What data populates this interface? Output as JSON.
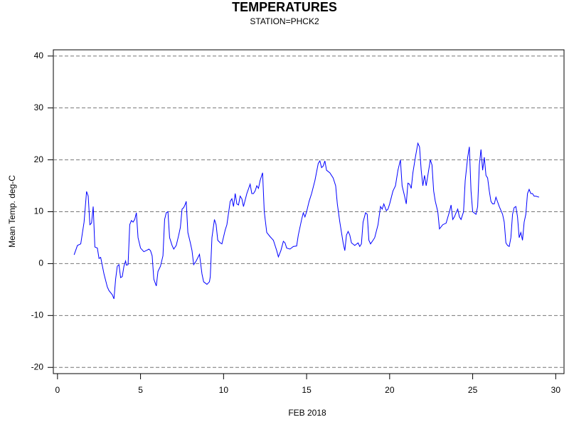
{
  "chart_data": {
    "type": "line",
    "title": "TEMPERATURES",
    "subtitle": "STATION=PHCK2",
    "xlabel": "FEB 2018",
    "ylabel": "Mean Temp. deg-C",
    "color": "#0000ff",
    "grid": true,
    "xlim": [
      -0.25,
      30.5
    ],
    "ylim": [
      -21.2,
      41.2
    ],
    "xticks": [
      0,
      5,
      10,
      15,
      20,
      25,
      30
    ],
    "yticks": [
      -20,
      -10,
      0,
      10,
      20,
      30,
      40
    ],
    "x": [
      1.0,
      1.2,
      1.4,
      1.6,
      1.75,
      1.85,
      1.95,
      2.05,
      2.15,
      2.25,
      2.4,
      2.5,
      2.6,
      2.8,
      3.0,
      3.1,
      3.3,
      3.4,
      3.5,
      3.6,
      3.7,
      3.8,
      3.9,
      4.0,
      4.1,
      4.15,
      4.25,
      4.35,
      4.45,
      4.55,
      4.65,
      4.75,
      4.85,
      5.0,
      5.2,
      5.4,
      5.5,
      5.6,
      5.7,
      5.8,
      5.95,
      6.05,
      6.2,
      6.35,
      6.45,
      6.55,
      6.65,
      6.75,
      6.9,
      7.0,
      7.15,
      7.3,
      7.4,
      7.5,
      7.6,
      7.7,
      7.75,
      7.85,
      8.0,
      8.1,
      8.2,
      8.35,
      8.55,
      8.7,
      8.8,
      9.0,
      9.15,
      9.2,
      9.3,
      9.45,
      9.55,
      9.65,
      9.8,
      9.9,
      10.1,
      10.2,
      10.4,
      10.5,
      10.6,
      10.7,
      10.8,
      10.9,
      11.0,
      11.1,
      11.2,
      11.4,
      11.6,
      11.7,
      11.8,
      11.9,
      12.0,
      12.1,
      12.2,
      12.35,
      12.45,
      12.6,
      12.8,
      13.0,
      13.1,
      13.2,
      13.3,
      13.45,
      13.6,
      13.7,
      13.8,
      14.0,
      14.2,
      14.4,
      14.5,
      14.7,
      14.8,
      14.9,
      15.0,
      15.15,
      15.3,
      15.5,
      15.7,
      15.8,
      15.9,
      16.0,
      16.1,
      16.2,
      16.4,
      16.6,
      16.75,
      16.85,
      17.0,
      17.2,
      17.3,
      17.4,
      17.5,
      17.6,
      17.7,
      17.9,
      18.1,
      18.2,
      18.3,
      18.4,
      18.55,
      18.65,
      18.75,
      18.85,
      19.0,
      19.1,
      19.3,
      19.45,
      19.55,
      19.65,
      19.8,
      19.9,
      20.0,
      20.2,
      20.35,
      20.5,
      20.65,
      20.75,
      20.9,
      21.0,
      21.1,
      21.2,
      21.3,
      21.4,
      21.55,
      21.7,
      21.8,
      21.9,
      22.0,
      22.1,
      22.2,
      22.35,
      22.45,
      22.55,
      22.65,
      22.75,
      22.9,
      23.0,
      23.2,
      23.4,
      23.6,
      23.7,
      23.8,
      23.9,
      24.0,
      24.1,
      24.2,
      24.3,
      24.45,
      24.55,
      24.7,
      24.8,
      24.9,
      25.0,
      25.2,
      25.3,
      25.4,
      25.5,
      25.6,
      25.7,
      25.8,
      25.9,
      26.0,
      26.1,
      26.2,
      26.3,
      26.4,
      26.6,
      26.8,
      26.9,
      27.0,
      27.1,
      27.2,
      27.3,
      27.4,
      27.5,
      27.6,
      27.7,
      27.8,
      27.9,
      28.0,
      28.1,
      28.2,
      28.3,
      28.4,
      28.5,
      28.6,
      28.7,
      28.8,
      29.0
    ],
    "values": [
      1.7,
      3.5,
      3.8,
      8,
      13.9,
      13,
      7.5,
      7.8,
      11,
      3.2,
      3,
      1,
      1.2,
      -2,
      -4.5,
      -5.2,
      -6,
      -6.8,
      -3,
      -0.5,
      -0.2,
      -2.7,
      -2.5,
      -0.5,
      0.5,
      -0.3,
      -0.2,
      7.5,
      8.3,
      8,
      8.5,
      9.8,
      5,
      3,
      2.3,
      2.6,
      2.8,
      2.5,
      1.5,
      -3,
      -4.3,
      -1.5,
      -0.5,
      1.5,
      8.5,
      9.8,
      10,
      5,
      3.5,
      2.8,
      3.5,
      5.5,
      7,
      10.5,
      10.8,
      11.5,
      12,
      6,
      4,
      2.5,
      -0.2,
      0.5,
      1.8,
      -2,
      -3.5,
      -4,
      -3.5,
      -2.5,
      5,
      8.5,
      7.5,
      4.5,
      4,
      3.8,
      6.5,
      7.5,
      12,
      12.5,
      11,
      13.5,
      11.5,
      11.3,
      13,
      12.5,
      11,
      13.5,
      15.3,
      13.5,
      13.5,
      14,
      15,
      14.5,
      16,
      17.5,
      10,
      6,
      5.2,
      4.5,
      3.5,
      2.5,
      1.3,
      2.5,
      4.3,
      4,
      3,
      2.8,
      3.3,
      3.4,
      5.5,
      8.5,
      9.8,
      9,
      10,
      12,
      13.5,
      16,
      19.3,
      19.8,
      18.5,
      18.8,
      19.8,
      18,
      17.5,
      16.5,
      15,
      11.5,
      8,
      4,
      2.5,
      5.5,
      6.2,
      5.5,
      4,
      3.5,
      4,
      3.3,
      3.8,
      8,
      9.8,
      9.5,
      4.5,
      3.8,
      4.5,
      5,
      7.5,
      11,
      10.5,
      11.5,
      10.2,
      10.5,
      11.5,
      14,
      15,
      18,
      20,
      15,
      13,
      11.5,
      15.5,
      15.3,
      14.5,
      17.5,
      20.5,
      23.2,
      22.5,
      18,
      15,
      17,
      15,
      18,
      20,
      19,
      14,
      12,
      10,
      6.7,
      7.5,
      7.8,
      10,
      11.3,
      8.5,
      9,
      9.8,
      10.5,
      9,
      8.5,
      10,
      16,
      20.5,
      22.5,
      14,
      10,
      9.5,
      11,
      19,
      22,
      18,
      20.5,
      17,
      16.5,
      14,
      12,
      11.5,
      11.5,
      12.8,
      11,
      9.5,
      8,
      4,
      3.5,
      3.3,
      5,
      9.5,
      10.8,
      11,
      9,
      5,
      6,
      4.5,
      8,
      9.5,
      13.5,
      14.3,
      13.5,
      13.5,
      13,
      13,
      12.8
    ]
  }
}
